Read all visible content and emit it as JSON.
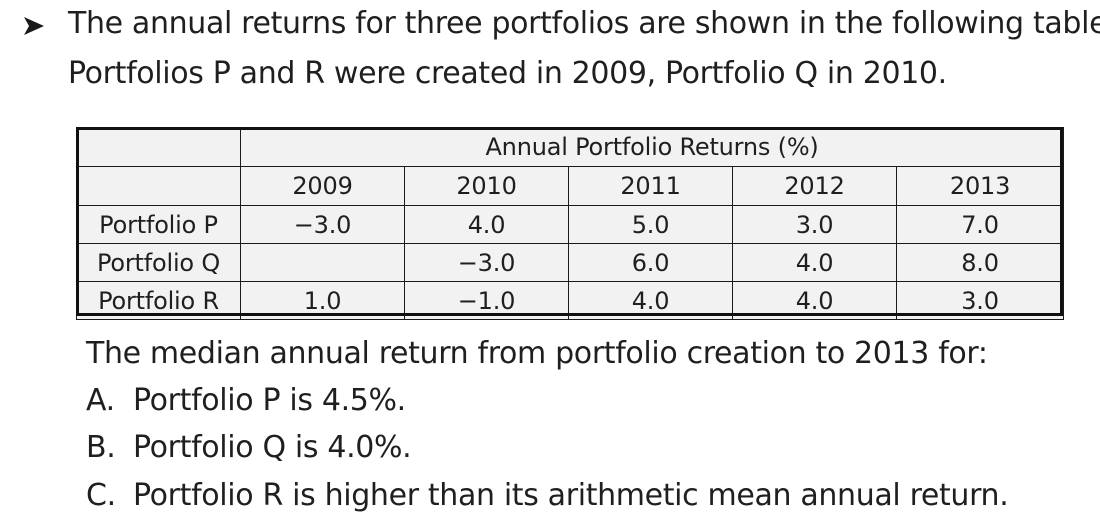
{
  "intro": {
    "line1": "The annual returns for three portfolios are shown in the following table.",
    "line2": "Portfolios P and R were created in 2009, Portfolio Q in 2010."
  },
  "table": {
    "title": "Annual Portfolio Returns (%)",
    "years": [
      "2009",
      "2010",
      "2011",
      "2012",
      "2013"
    ],
    "rows": [
      {
        "name": "Portfolio P",
        "values": [
          "−3.0",
          "4.0",
          "5.0",
          "3.0",
          "7.0"
        ]
      },
      {
        "name": "Portfolio Q",
        "values": [
          "",
          "−3.0",
          "6.0",
          "4.0",
          "8.0"
        ]
      },
      {
        "name": "Portfolio R",
        "values": [
          "1.0",
          "−1.0",
          "4.0",
          "4.0",
          "3.0"
        ]
      }
    ]
  },
  "question": "The median annual return from portfolio creation to 2013 for:",
  "options": [
    {
      "letter": "A.",
      "text": "Portfolio P is 4.5%."
    },
    {
      "letter": "B.",
      "text": "Portfolio Q is 4.0%."
    },
    {
      "letter": "C.",
      "text": "Portfolio R is higher than its arithmetic mean annual return."
    }
  ],
  "icons": {
    "bullet": "arrowhead-bullet-icon"
  },
  "colors": {
    "text": "#1f1f1f",
    "table_fill": "#f2f2f2",
    "border": "#111111"
  }
}
